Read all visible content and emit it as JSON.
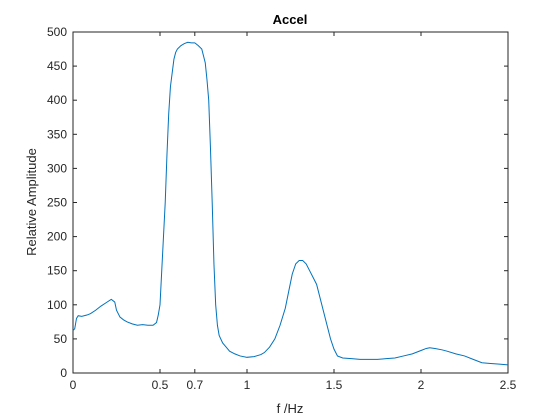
{
  "chart_data": {
    "type": "line",
    "title": "Accel",
    "xlabel": "f /Hz",
    "ylabel": "Relative Amplitude",
    "xlim": [
      0,
      2.5
    ],
    "ylim": [
      0,
      500
    ],
    "xticks": [
      0,
      0.5,
      0.7,
      1,
      1.5,
      2,
      2.5
    ],
    "xtick_labels": [
      "0",
      "0.5",
      "0.7",
      "1",
      "1.5",
      "2",
      "2.5"
    ],
    "yticks": [
      0,
      50,
      100,
      150,
      200,
      250,
      300,
      350,
      400,
      450,
      500
    ],
    "ytick_labels": [
      "0",
      "50",
      "100",
      "150",
      "200",
      "250",
      "300",
      "350",
      "400",
      "450",
      "500"
    ],
    "grid": false,
    "line_color": "#0072BD",
    "series": [
      {
        "x": [
          0,
          0.01,
          0.02,
          0.03,
          0.05,
          0.08,
          0.1,
          0.13,
          0.16,
          0.19,
          0.22,
          0.24,
          0.25,
          0.27,
          0.29,
          0.31,
          0.34,
          0.37,
          0.4,
          0.43,
          0.46,
          0.48,
          0.49,
          0.5,
          0.51,
          0.52,
          0.53,
          0.54,
          0.55,
          0.56,
          0.57,
          0.58,
          0.59,
          0.6,
          0.62,
          0.64,
          0.66,
          0.68,
          0.7,
          0.72,
          0.74,
          0.76,
          0.77,
          0.78,
          0.79,
          0.8,
          0.81,
          0.82,
          0.83,
          0.84,
          0.86,
          0.88,
          0.9,
          0.93,
          0.96,
          1.0,
          1.04,
          1.08,
          1.1,
          1.13,
          1.16,
          1.19,
          1.22,
          1.24,
          1.26,
          1.28,
          1.3,
          1.32,
          1.34,
          1.36,
          1.38,
          1.4,
          1.42,
          1.44,
          1.46,
          1.48,
          1.5,
          1.52,
          1.55,
          1.6,
          1.65,
          1.7,
          1.75,
          1.8,
          1.85,
          1.9,
          1.95,
          2.0,
          2.03,
          2.05,
          2.08,
          2.12,
          2.15,
          2.2,
          2.25,
          2.3,
          2.35,
          2.4,
          2.45,
          2.5
        ],
        "y": [
          62,
          65,
          80,
          84,
          83,
          85,
          87,
          92,
          98,
          103,
          108,
          104,
          92,
          82,
          78,
          75,
          72,
          70,
          71,
          70,
          70,
          74,
          85,
          100,
          150,
          200,
          250,
          320,
          380,
          420,
          440,
          460,
          470,
          475,
          480,
          483,
          485,
          484,
          484,
          480,
          475,
          455,
          430,
          400,
          330,
          250,
          160,
          100,
          70,
          55,
          44,
          38,
          32,
          28,
          25,
          23,
          24,
          27,
          30,
          38,
          50,
          70,
          95,
          120,
          145,
          160,
          165,
          165,
          160,
          150,
          140,
          130,
          110,
          90,
          70,
          50,
          35,
          25,
          22,
          21,
          20,
          20,
          20,
          21,
          22,
          25,
          28,
          33,
          36,
          37,
          36,
          34,
          32,
          28,
          25,
          20,
          15,
          14,
          13,
          12
        ]
      }
    ]
  }
}
